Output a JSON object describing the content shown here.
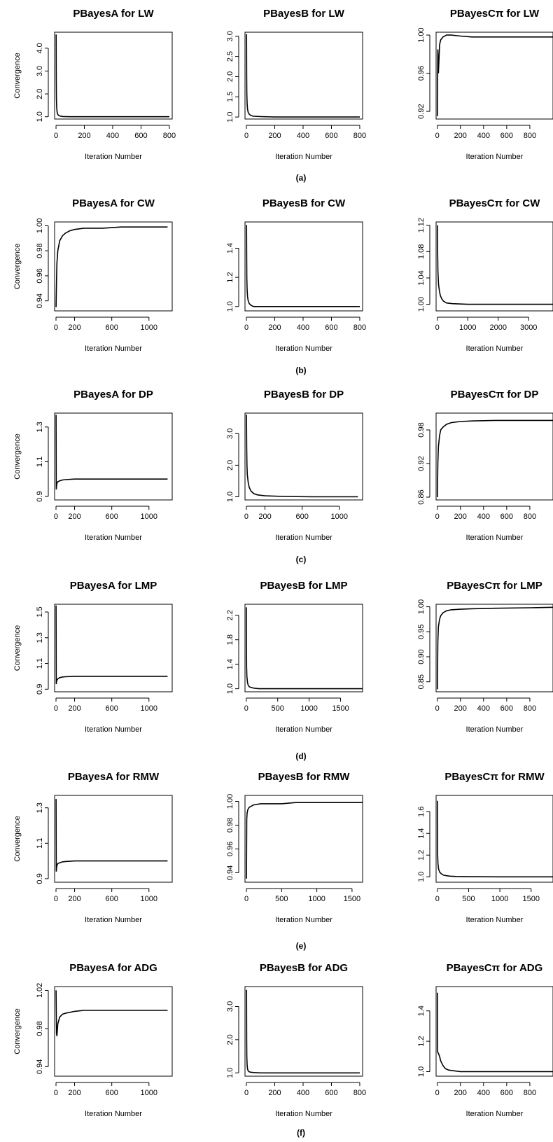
{
  "chart_data": [
    {
      "type": "line",
      "title": "PBayesA for LW",
      "xlabel": "Iteration Number",
      "ylabel": "Convergence",
      "xlim": [
        -10,
        820
      ],
      "ylim": [
        0.9,
        4.7
      ],
      "xticks": [
        0,
        200,
        400,
        600,
        800
      ],
      "xtick_labels": [
        "0",
        "200",
        "400",
        "600",
        "800"
      ],
      "yticks": [
        1.0,
        2.0,
        3.0,
        4.0
      ],
      "ytick_labels": [
        "1.0",
        "2.0",
        "3.0",
        "4.0"
      ],
      "x": [
        1,
        2,
        3,
        5,
        8,
        12,
        20,
        30,
        50,
        100,
        200,
        400,
        600,
        800
      ],
      "y": [
        4.6,
        2.6,
        1.8,
        1.4,
        1.2,
        1.1,
        1.05,
        1.03,
        1.01,
        1.0,
        1.0,
        1.0,
        1.0,
        1.0
      ]
    },
    {
      "type": "line",
      "title": "PBayesB for LW",
      "xlabel": "Iteration Number",
      "ylabel": "",
      "xlim": [
        -10,
        820
      ],
      "ylim": [
        0.95,
        3.1
      ],
      "xticks": [
        0,
        200,
        400,
        600,
        800
      ],
      "xtick_labels": [
        "0",
        "200",
        "400",
        "600",
        "800"
      ],
      "yticks": [
        1.0,
        1.5,
        2.0,
        2.5,
        3.0
      ],
      "ytick_labels": [
        "1.0",
        "1.5",
        "2.0",
        "2.5",
        "3.0"
      ],
      "x": [
        1,
        2,
        3,
        5,
        8,
        12,
        20,
        30,
        50,
        100,
        200,
        400,
        600,
        800
      ],
      "y": [
        3.05,
        2.0,
        1.6,
        1.35,
        1.2,
        1.12,
        1.07,
        1.04,
        1.02,
        1.01,
        1.0,
        1.0,
        1.0,
        1.0
      ]
    },
    {
      "type": "line",
      "title": "PBayesCπ for LW",
      "xlabel": "Iteration Number",
      "ylabel": "",
      "xlim": [
        -10,
        1000
      ],
      "ylim": [
        0.912,
        1.003
      ],
      "xticks": [
        0,
        200,
        400,
        600,
        800
      ],
      "xtick_labels": [
        "0",
        "200",
        "400",
        "600",
        "800"
      ],
      "yticks": [
        0.92,
        0.96,
        1.0
      ],
      "ytick_labels": [
        "0.92",
        "0.96",
        "1.00"
      ],
      "x": [
        1,
        5,
        10,
        20,
        30,
        50,
        80,
        120,
        200,
        300,
        500,
        800,
        1000
      ],
      "y": [
        0.915,
        0.985,
        0.96,
        0.99,
        0.995,
        0.998,
        1.0,
        1.0,
        0.999,
        0.998,
        0.998,
        0.998,
        0.998
      ]
    },
    {
      "type": "line",
      "title": "PBayesA for CW",
      "xlabel": "Iteration Number",
      "ylabel": "Convergence",
      "xlim": [
        -15,
        1250
      ],
      "ylim": [
        0.932,
        1.003
      ],
      "xticks": [
        0,
        200,
        600,
        1000
      ],
      "xtick_labels": [
        "0",
        "200",
        "600",
        "1000"
      ],
      "yticks": [
        0.94,
        0.96,
        0.98,
        1.0
      ],
      "ytick_labels": [
        "0.94",
        "0.96",
        "0.98",
        "1.00"
      ],
      "x": [
        1,
        5,
        10,
        20,
        40,
        70,
        100,
        150,
        200,
        300,
        500,
        700,
        1000,
        1200
      ],
      "y": [
        0.935,
        0.955,
        0.97,
        0.98,
        0.988,
        0.992,
        0.994,
        0.996,
        0.997,
        0.998,
        0.998,
        0.999,
        0.999,
        0.999
      ]
    },
    {
      "type": "line",
      "title": "PBayesB for CW",
      "xlabel": "Iteration Number",
      "ylabel": "",
      "xlim": [
        -10,
        820
      ],
      "ylim": [
        0.97,
        1.58
      ],
      "xticks": [
        0,
        200,
        400,
        600,
        800
      ],
      "xtick_labels": [
        "0",
        "200",
        "400",
        "600",
        "800"
      ],
      "yticks": [
        1.0,
        1.2,
        1.4
      ],
      "ytick_labels": [
        "1.0",
        "1.2",
        "1.4"
      ],
      "x": [
        1,
        2,
        3,
        5,
        8,
        12,
        20,
        30,
        50,
        100,
        200,
        400,
        600,
        800
      ],
      "y": [
        1.56,
        1.35,
        1.2,
        1.12,
        1.07,
        1.04,
        1.02,
        1.01,
        1.0,
        1.0,
        1.0,
        1.0,
        1.0,
        1.0
      ]
    },
    {
      "type": "line",
      "title": "PBayesCπ for CW",
      "xlabel": "Iteration Number",
      "ylabel": "",
      "xlim": [
        -40,
        3800
      ],
      "ylim": [
        0.99,
        1.125
      ],
      "xticks": [
        0,
        1000,
        2000,
        3000
      ],
      "xtick_labels": [
        "0",
        "1000",
        "2000",
        "3000"
      ],
      "yticks": [
        1.0,
        1.04,
        1.08,
        1.12
      ],
      "ytick_labels": [
        "1.00",
        "1.04",
        "1.08",
        "1.12"
      ],
      "x": [
        1,
        10,
        20,
        40,
        70,
        100,
        150,
        200,
        300,
        500,
        1000,
        2000,
        3000,
        3800
      ],
      "y": [
        1.12,
        1.08,
        1.05,
        1.03,
        1.02,
        1.013,
        1.008,
        1.005,
        1.002,
        1.001,
        1.0,
        1.0,
        1.0,
        1.0
      ]
    },
    {
      "type": "line",
      "title": "PBayesA for DP",
      "xlabel": "Iteration Number",
      "ylabel": "Convergence",
      "xlim": [
        -15,
        1250
      ],
      "ylim": [
        0.88,
        1.38
      ],
      "xticks": [
        0,
        200,
        600,
        1000
      ],
      "xtick_labels": [
        "0",
        "200",
        "600",
        "1000"
      ],
      "yticks": [
        0.9,
        1.1,
        1.3
      ],
      "ytick_labels": [
        "0.9",
        "1.1",
        "1.3"
      ],
      "x": [
        1,
        3,
        6,
        10,
        20,
        40,
        70,
        100,
        200,
        400,
        700,
        1000,
        1200
      ],
      "y": [
        1.37,
        0.94,
        0.96,
        0.975,
        0.985,
        0.99,
        0.995,
        0.997,
        1.0,
        1.0,
        1.0,
        1.0,
        1.0
      ]
    },
    {
      "type": "line",
      "title": "PBayesB for DP",
      "xlabel": "Iteration Number",
      "ylabel": "",
      "xlim": [
        -15,
        1250
      ],
      "ylim": [
        0.9,
        3.65
      ],
      "xticks": [
        0,
        200,
        600,
        1000
      ],
      "xtick_labels": [
        "0",
        "200",
        "600",
        "1000"
      ],
      "yticks": [
        1.0,
        2.0,
        3.0
      ],
      "ytick_labels": [
        "1.0",
        "2.0",
        "3.0"
      ],
      "x": [
        1,
        3,
        6,
        10,
        20,
        30,
        50,
        80,
        120,
        200,
        400,
        700,
        1000,
        1200
      ],
      "y": [
        3.6,
        2.6,
        2.0,
        1.7,
        1.45,
        1.3,
        1.18,
        1.1,
        1.06,
        1.03,
        1.01,
        1.0,
        1.0,
        1.0
      ],
      "grid": false
    },
    {
      "type": "line",
      "title": "PBayesCπ for DP",
      "xlabel": "Iteration Number",
      "ylabel": "",
      "xlim": [
        -10,
        1000
      ],
      "ylim": [
        0.855,
        1.01
      ],
      "xticks": [
        0,
        200,
        400,
        600,
        800
      ],
      "xtick_labels": [
        "0",
        "200",
        "400",
        "600",
        "800"
      ],
      "yticks": [
        0.86,
        0.92,
        0.98
      ],
      "ytick_labels": [
        "0.86",
        "0.92",
        "0.98"
      ],
      "x": [
        1,
        5,
        10,
        20,
        30,
        50,
        80,
        120,
        200,
        300,
        500,
        800,
        1000
      ],
      "y": [
        0.86,
        0.92,
        0.95,
        0.97,
        0.98,
        0.985,
        0.99,
        0.993,
        0.995,
        0.996,
        0.997,
        0.997,
        0.997
      ]
    },
    {
      "type": "line",
      "title": "PBayesA for LMP",
      "xlabel": "Iteration Number",
      "ylabel": "Convergence",
      "xlim": [
        -15,
        1250
      ],
      "ylim": [
        0.88,
        1.56
      ],
      "xticks": [
        0,
        200,
        600,
        1000
      ],
      "xtick_labels": [
        "0",
        "200",
        "600",
        "1000"
      ],
      "yticks": [
        0.9,
        1.1,
        1.3,
        1.5
      ],
      "ytick_labels": [
        "0.9",
        "1.1",
        "1.3",
        "1.5"
      ],
      "x": [
        1,
        3,
        6,
        10,
        20,
        40,
        70,
        100,
        200,
        400,
        700,
        1000,
        1200
      ],
      "y": [
        1.55,
        0.94,
        0.96,
        0.97,
        0.98,
        0.99,
        0.995,
        0.997,
        1.0,
        1.0,
        1.0,
        1.0,
        1.0
      ]
    },
    {
      "type": "line",
      "title": "PBayesB for LMP",
      "xlabel": "Iteration Number",
      "ylabel": "",
      "xlim": [
        -20,
        1850
      ],
      "ylim": [
        0.95,
        2.38
      ],
      "xticks": [
        0,
        500,
        1000,
        1500
      ],
      "xtick_labels": [
        "0",
        "500",
        "1000",
        "1500"
      ],
      "yticks": [
        1.0,
        1.4,
        1.8,
        2.2
      ],
      "ytick_labels": [
        "1.0",
        "1.4",
        "1.8",
        "2.2"
      ],
      "x": [
        1,
        3,
        6,
        10,
        20,
        30,
        50,
        80,
        120,
        200,
        500,
        1000,
        1500,
        1850
      ],
      "y": [
        2.33,
        1.7,
        1.35,
        1.2,
        1.1,
        1.06,
        1.03,
        1.02,
        1.01,
        1.0,
        1.0,
        1.0,
        1.0,
        1.0
      ]
    },
    {
      "type": "line",
      "title": "PBayesCπ for LMP",
      "xlabel": "Iteration Number",
      "ylabel": "",
      "xlim": [
        -10,
        1000
      ],
      "ylim": [
        0.83,
        1.005
      ],
      "xticks": [
        0,
        200,
        400,
        600,
        800
      ],
      "xtick_labels": [
        "0",
        "200",
        "400",
        "600",
        "800"
      ],
      "yticks": [
        0.85,
        0.9,
        0.95,
        1.0
      ],
      "ytick_labels": [
        "0.85",
        "0.90",
        "0.95",
        "1.00"
      ],
      "x": [
        1,
        5,
        10,
        20,
        30,
        50,
        80,
        120,
        200,
        300,
        500,
        800,
        1000
      ],
      "y": [
        0.835,
        0.93,
        0.96,
        0.975,
        0.982,
        0.988,
        0.992,
        0.994,
        0.995,
        0.996,
        0.997,
        0.998,
        0.999
      ]
    },
    {
      "type": "line",
      "title": "PBayesA for RMW",
      "xlabel": "Iteration Number",
      "ylabel": "Convergence",
      "xlim": [
        -15,
        1250
      ],
      "ylim": [
        0.88,
        1.37
      ],
      "xticks": [
        0,
        200,
        600,
        1000
      ],
      "xtick_labels": [
        "0",
        "200",
        "600",
        "1000"
      ],
      "yticks": [
        0.9,
        1.1,
        1.3
      ],
      "ytick_labels": [
        "0.9",
        "1.1",
        "1.3"
      ],
      "x": [
        1,
        3,
        6,
        10,
        20,
        40,
        70,
        100,
        200,
        400,
        700,
        1000,
        1200
      ],
      "y": [
        1.35,
        0.94,
        0.96,
        0.975,
        0.985,
        0.99,
        0.995,
        0.997,
        1.0,
        1.0,
        1.0,
        1.0,
        1.0
      ]
    },
    {
      "type": "line",
      "title": "PBayesB for RMW",
      "xlabel": "Iteration Number",
      "ylabel": "",
      "xlim": [
        -20,
        1650
      ],
      "ylim": [
        0.932,
        1.005
      ],
      "xticks": [
        0,
        500,
        1000,
        1500
      ],
      "xtick_labels": [
        "0",
        "500",
        "1000",
        "1500"
      ],
      "yticks": [
        0.94,
        0.96,
        0.98,
        1.0
      ],
      "ytick_labels": [
        "0.94",
        "0.96",
        "0.98",
        "1.00"
      ],
      "x": [
        1,
        5,
        10,
        20,
        40,
        70,
        100,
        200,
        300,
        500,
        700,
        1000,
        1500,
        1650
      ],
      "y": [
        0.935,
        0.985,
        0.99,
        0.993,
        0.995,
        0.996,
        0.997,
        0.998,
        0.998,
        0.998,
        0.999,
        0.999,
        0.999,
        0.999
      ]
    },
    {
      "type": "line",
      "title": "PBayesCπ for RMW",
      "xlabel": "Iteration Number",
      "ylabel": "",
      "xlim": [
        -20,
        1850
      ],
      "ylim": [
        0.95,
        1.75
      ],
      "xticks": [
        0,
        500,
        1000,
        1500
      ],
      "xtick_labels": [
        "0",
        "500",
        "1000",
        "1500"
      ],
      "yticks": [
        1.0,
        1.2,
        1.4,
        1.6
      ],
      "ytick_labels": [
        "1.0",
        "1.2",
        "1.4",
        "1.6"
      ],
      "x": [
        1,
        5,
        10,
        20,
        40,
        70,
        100,
        150,
        200,
        300,
        500,
        1000,
        1500,
        1850
      ],
      "y": [
        1.7,
        1.2,
        1.12,
        1.07,
        1.04,
        1.025,
        1.015,
        1.01,
        1.006,
        1.003,
        1.001,
        1.0,
        1.0,
        1.0
      ]
    },
    {
      "type": "line",
      "title": "PBayesA for ADG",
      "xlabel": "Iteration Number",
      "ylabel": "Convergence",
      "xlim": [
        -15,
        1250
      ],
      "ylim": [
        0.93,
        1.024
      ],
      "xticks": [
        0,
        200,
        600,
        1000
      ],
      "xtick_labels": [
        "0",
        "200",
        "600",
        "1000"
      ],
      "yticks": [
        0.94,
        0.98,
        1.02
      ],
      "ytick_labels": [
        "0.94",
        "0.98",
        "1.02"
      ],
      "x": [
        1,
        5,
        10,
        20,
        40,
        70,
        100,
        150,
        200,
        300,
        500,
        700,
        1000,
        1200
      ],
      "y": [
        1.02,
        0.975,
        0.972,
        0.985,
        0.992,
        0.995,
        0.996,
        0.997,
        0.998,
        0.999,
        0.999,
        0.999,
        0.999,
        0.999
      ]
    },
    {
      "type": "line",
      "title": "PBayesB  for ADG",
      "xlabel": "Iteration Number",
      "ylabel": "",
      "xlim": [
        -10,
        820
      ],
      "ylim": [
        0.9,
        3.6
      ],
      "xticks": [
        0,
        200,
        400,
        600,
        800
      ],
      "xtick_labels": [
        "0",
        "200",
        "400",
        "600",
        "800"
      ],
      "yticks": [
        1.0,
        2.0,
        3.0
      ],
      "ytick_labels": [
        "1.0",
        "2.0",
        "3.0"
      ],
      "x": [
        1,
        2,
        3,
        5,
        8,
        12,
        20,
        30,
        50,
        100,
        200,
        400,
        600,
        800
      ],
      "y": [
        3.5,
        2.0,
        1.5,
        1.25,
        1.12,
        1.06,
        1.03,
        1.02,
        1.01,
        1.0,
        1.0,
        1.0,
        1.0,
        1.0
      ]
    },
    {
      "type": "line",
      "title": "PBayesCπ  for ADG",
      "xlabel": "Iteration Number",
      "ylabel": "",
      "xlim": [
        -10,
        1000
      ],
      "ylim": [
        0.97,
        1.56
      ],
      "xticks": [
        0,
        200,
        400,
        600,
        800
      ],
      "xtick_labels": [
        "0",
        "200",
        "400",
        "600",
        "800"
      ],
      "yticks": [
        1.0,
        1.2,
        1.4
      ],
      "ytick_labels": [
        "1.0",
        "1.2",
        "1.4"
      ],
      "x": [
        1,
        3,
        10,
        20,
        30,
        50,
        70,
        100,
        150,
        200,
        400,
        600,
        800,
        1000
      ],
      "y": [
        1.52,
        1.13,
        1.12,
        1.1,
        1.07,
        1.04,
        1.02,
        1.01,
        1.005,
        1.0,
        1.0,
        1.0,
        1.0,
        1.0
      ]
    }
  ],
  "panel_labels": [
    "(a)",
    "(b)",
    "(c)",
    "(d)",
    "(e)",
    "(f)"
  ],
  "colors": {
    "line": "#000000",
    "axis": "#000000",
    "background": "#ffffff"
  }
}
